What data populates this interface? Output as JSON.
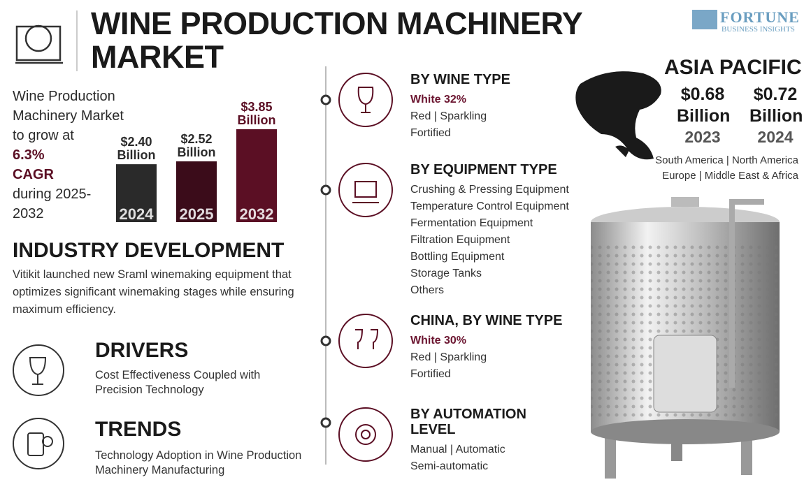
{
  "header": {
    "title": "WINE PRODUCTION MACHINERY MARKET",
    "brand": "FORTUNE",
    "brand_sub": "BUSINESS INSIGHTS"
  },
  "growth": {
    "intro": "Wine Production Machinery Market to grow at",
    "cagr": "6.3% CAGR",
    "period": "during 2025-2032"
  },
  "chart_data": {
    "type": "bar",
    "categories": [
      "2024",
      "2025",
      "2032"
    ],
    "values": [
      2.4,
      2.52,
      3.85
    ],
    "value_labels": [
      "$2.40 Billion",
      "$2.52 Billion",
      "$3.85 Billion"
    ],
    "colors": [
      "#2a2a2a",
      "#3b0c1a",
      "#5b0f24"
    ]
  },
  "industry_development": {
    "heading": "INDUSTRY DEVELOPMENT",
    "text": "Vitikit launched new Sraml winemaking equipment that optimizes significant winemaking stages while ensuring maximum efficiency."
  },
  "drivers": {
    "heading": "DRIVERS",
    "text": "Cost Effectiveness Coupled with Precision Technology"
  },
  "trends": {
    "heading": "TRENDS",
    "text": "Technology Adoption in Wine Production Machinery Manufacturing"
  },
  "segments": [
    {
      "heading": "BY WINE TYPE",
      "highlight": "White 32%",
      "items": [
        "Red | Sparkling",
        "Fortified"
      ]
    },
    {
      "heading": "BY EQUIPMENT TYPE",
      "items": [
        "Crushing & Pressing Equipment",
        "Temperature Control Equipment",
        "Fermentation Equipment",
        "Filtration Equipment",
        "Bottling Equipment",
        "Storage Tanks",
        "Others"
      ]
    },
    {
      "heading": "CHINA, BY WINE TYPE",
      "highlight": "White 30%",
      "items": [
        "Red | Sparkling",
        "Fortified"
      ]
    },
    {
      "heading": "BY AUTOMATION LEVEL",
      "items": [
        "Manual | Automatic",
        "Semi-automatic"
      ]
    }
  ],
  "region": {
    "name": "ASIA PACIFIC",
    "stats": [
      {
        "value": "$0.68 Billion",
        "year": "2023"
      },
      {
        "value": "$0.72 Billion",
        "year": "2024"
      }
    ],
    "others": [
      "South America | North America",
      "Europe | Middle East & Africa"
    ]
  }
}
